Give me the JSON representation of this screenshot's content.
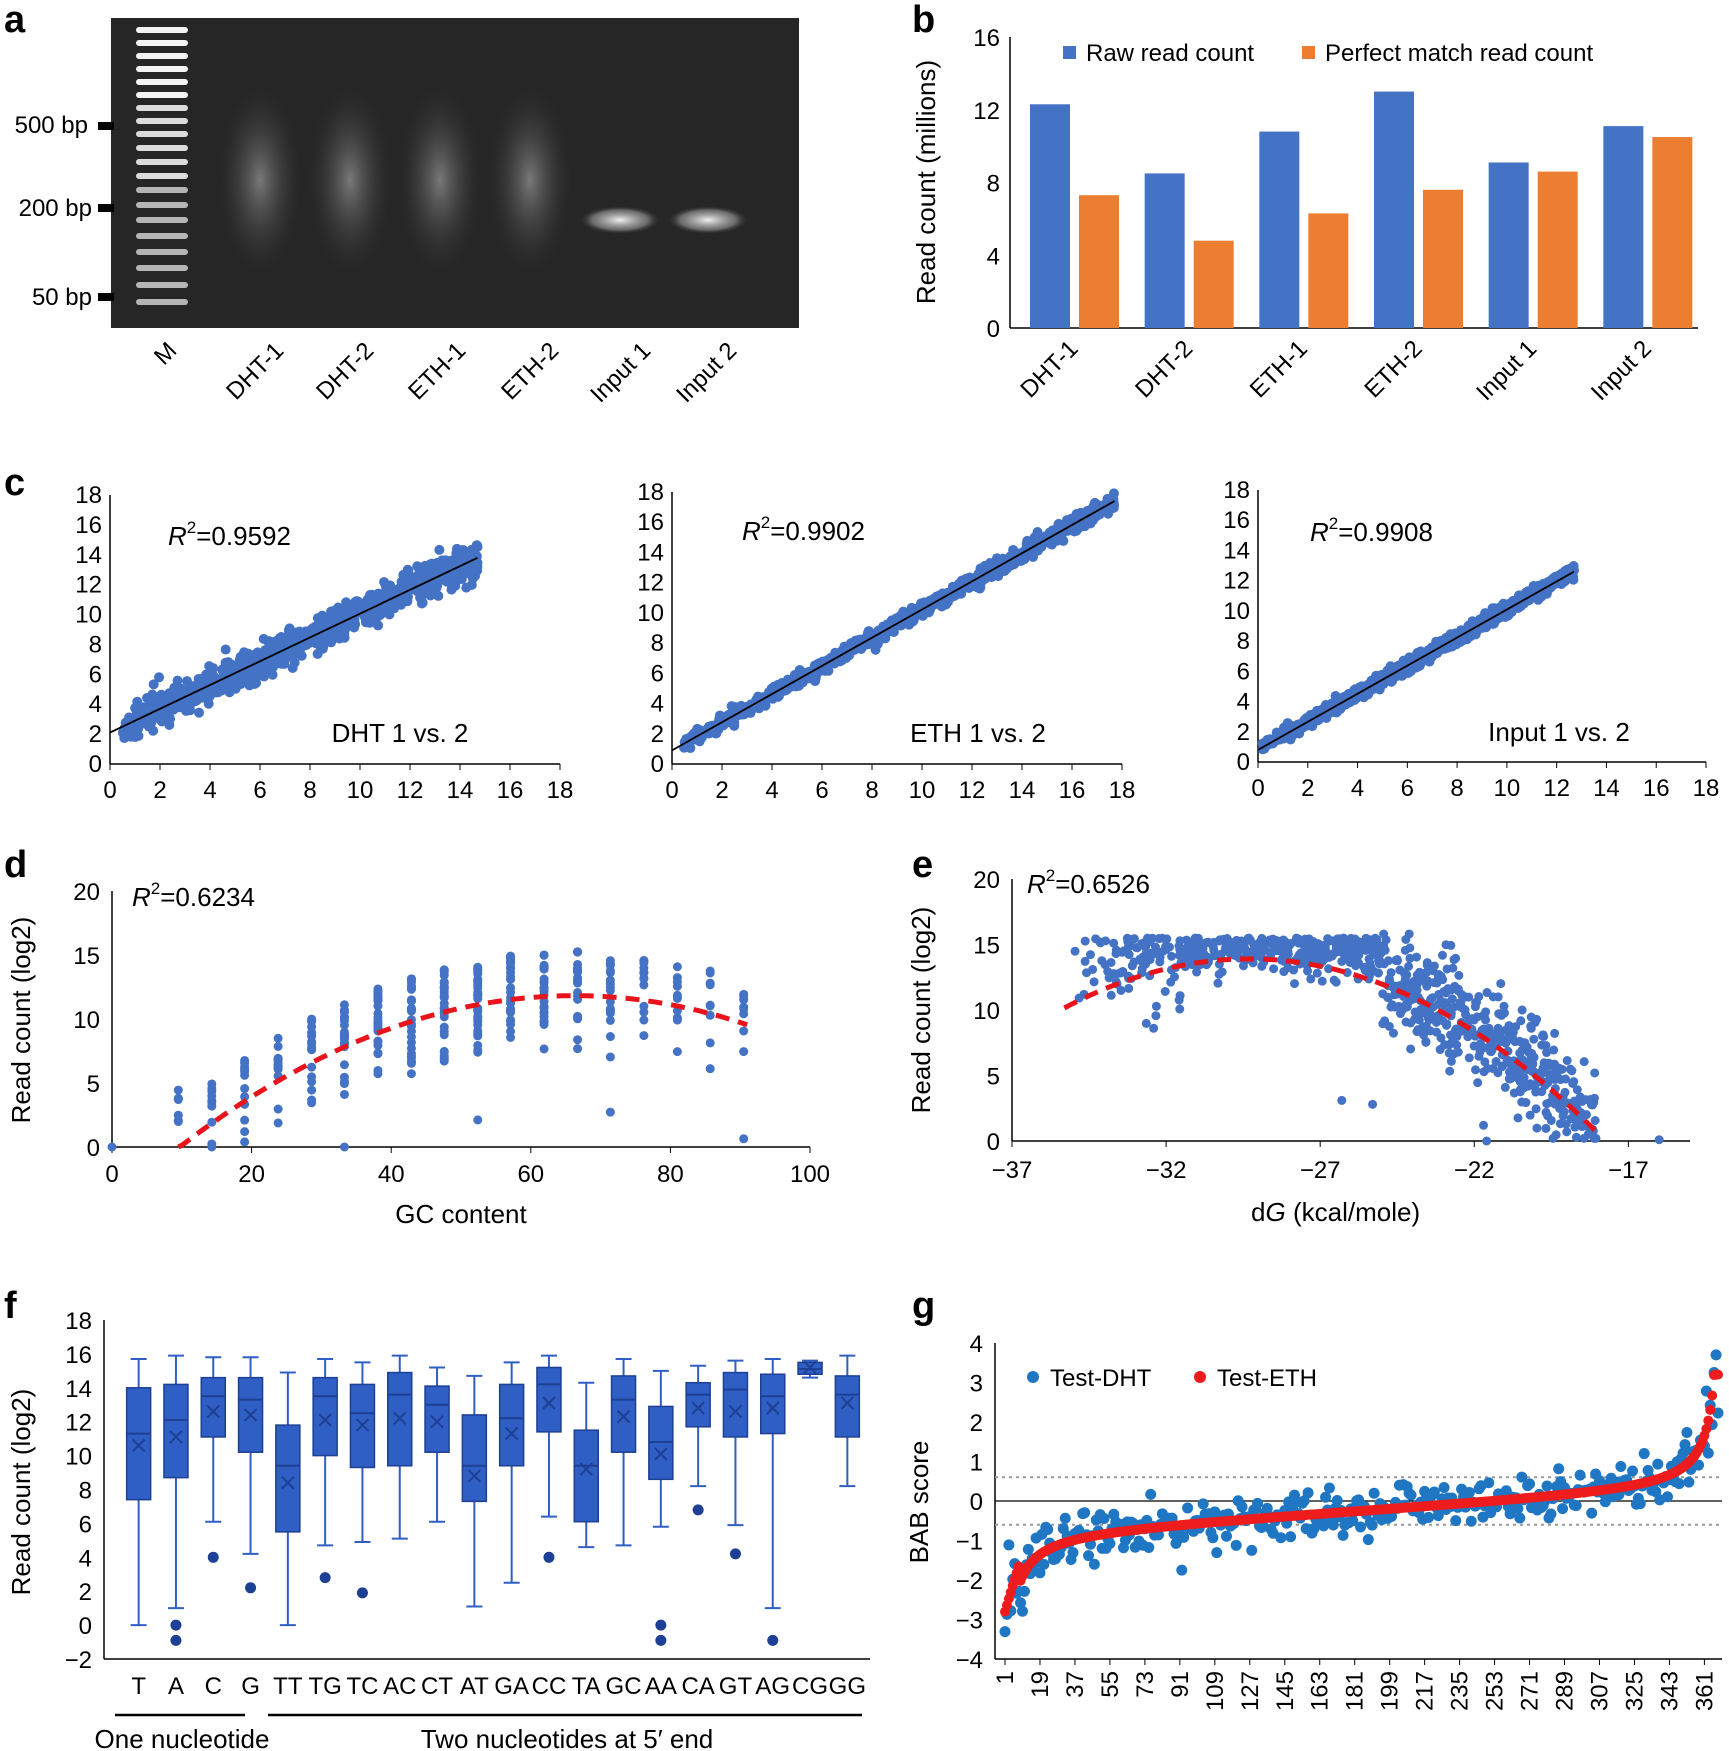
{
  "panels": {
    "a": {
      "label": "a"
    },
    "b": {
      "label": "b"
    },
    "c": {
      "label": "c"
    },
    "d": {
      "label": "d"
    },
    "e": {
      "label": "e"
    },
    "f": {
      "label": "f"
    },
    "g": {
      "label": "g"
    }
  },
  "chart_data": [
    {
      "id": "a",
      "type": "other",
      "description_kind": "gel",
      "marker_labels": [
        "500 bp",
        "200 bp",
        "50 bp"
      ],
      "lane_labels": [
        "M",
        "DHT-1",
        "DHT-2",
        "ETH-1",
        "ETH-2",
        "Input 1",
        "Input 2"
      ]
    },
    {
      "id": "b",
      "type": "bar",
      "categories": [
        "DHT-1",
        "DHT-2",
        "ETH-1",
        "ETH-2",
        "Input 1",
        "Input 2"
      ],
      "series": [
        {
          "name": "Raw read count",
          "color": "#4472c4",
          "values": [
            12.3,
            8.5,
            10.8,
            13.0,
            9.1,
            11.1
          ]
        },
        {
          "name": "Perfect match read count",
          "color": "#ed7d31",
          "values": [
            7.3,
            4.8,
            6.3,
            7.6,
            8.6,
            10.5
          ]
        }
      ],
      "ylabel": "Read count (millions)",
      "ylim": [
        0,
        16
      ],
      "yticks": [
        0,
        4,
        8,
        12,
        16
      ]
    },
    {
      "id": "c1",
      "type": "scatter",
      "annotation": "DHT 1 vs. 2",
      "r2_label": "R",
      "r2_sup": "2",
      "r2_value": "=0.9592",
      "xlim": [
        0,
        18
      ],
      "ylim": [
        0,
        18
      ],
      "ticks": [
        0,
        2,
        4,
        6,
        8,
        10,
        12,
        14,
        16,
        18
      ],
      "fit": {
        "x0": 0,
        "y0": 2.1,
        "x1": 14.7,
        "y1": 13.8
      },
      "x_range": [
        0.5,
        14.7
      ],
      "slope": 0.8,
      "intercept": 2.1,
      "spread": 0.6
    },
    {
      "id": "c2",
      "type": "scatter",
      "annotation": "ETH 1 vs. 2",
      "r2_label": "R",
      "r2_sup": "2",
      "r2_value": "=0.9902",
      "xlim": [
        0,
        18
      ],
      "ylim": [
        0,
        18
      ],
      "ticks": [
        0,
        2,
        4,
        6,
        8,
        10,
        12,
        14,
        16,
        18
      ],
      "fit": {
        "x0": 0,
        "y0": 0.9,
        "x1": 17.7,
        "y1": 17.4
      },
      "x_range": [
        0.4,
        17.7
      ],
      "slope": 0.93,
      "intercept": 0.9,
      "spread": 0.25
    },
    {
      "id": "c3",
      "type": "scatter",
      "annotation": "Input 1 vs. 2",
      "r2_label": "R",
      "r2_sup": "2",
      "r2_value": "=0.9908",
      "xlim": [
        0,
        18
      ],
      "ylim": [
        0,
        18
      ],
      "ticks": [
        0,
        2,
        4,
        6,
        8,
        10,
        12,
        14,
        16,
        18
      ],
      "fit": {
        "x0": 0,
        "y0": 0.8,
        "x1": 12.7,
        "y1": 12.6
      },
      "x_range": [
        0.1,
        12.7
      ],
      "slope": 0.93,
      "intercept": 0.8,
      "spread": 0.22
    },
    {
      "id": "d",
      "type": "scatter",
      "xlabel": "GC content",
      "ylabel": "Read count (log2)",
      "r2_label": "R",
      "r2_sup": "2",
      "r2_value": "=0.6234",
      "xlim": [
        0,
        100
      ],
      "ylim": [
        0,
        20
      ],
      "xticks": [
        0,
        20,
        40,
        60,
        80,
        100
      ],
      "yticks": [
        0,
        5,
        10,
        15,
        20
      ],
      "gc_levels": [
        9.5,
        14.3,
        19,
        23.8,
        28.6,
        33.3,
        38.1,
        42.9,
        47.6,
        52.4,
        57.1,
        61.9,
        66.7,
        71.4,
        76.2,
        81,
        85.7,
        90.5
      ],
      "fit_quadratic": {
        "a": -0.0037,
        "b": 0.49,
        "c": -4.4,
        "x_from": 9.5,
        "x_to": 91
      }
    },
    {
      "id": "e",
      "type": "scatter",
      "xlabel_prefix": "d",
      "xlabel_italic": "G",
      "xlabel_suffix": " (kcal/mole)",
      "ylabel": "Read count (log2)",
      "r2_label": "R",
      "r2_sup": "2",
      "r2_value": "=0.6526",
      "xlim": [
        -37,
        -15
      ],
      "ylim": [
        0,
        20
      ],
      "xticks": [
        -37,
        -32,
        -27,
        -22,
        -17
      ],
      "xtick_labels": [
        "−37",
        "−32",
        "−27",
        "−22",
        "−17"
      ],
      "yticks": [
        0,
        5,
        10,
        15,
        20
      ],
      "fit_quadratic": {
        "vertex_x": -29.3,
        "vertex_y": 13.9,
        "k": -0.104,
        "x_from": -35.3,
        "x_to": -17.8
      }
    },
    {
      "id": "f",
      "type": "box",
      "ylabel": "Read count (log2)",
      "ylim": [
        -2,
        18
      ],
      "yticks": [
        -2,
        0,
        2,
        4,
        6,
        8,
        10,
        12,
        14,
        16,
        18
      ],
      "categories": [
        "T",
        "A",
        "C",
        "G",
        "TT",
        "TG",
        "TC",
        "AC",
        "CT",
        "AT",
        "GA",
        "CC",
        "TA",
        "GC",
        "AA",
        "CA",
        "GT",
        "AG",
        "CG",
        "GG"
      ],
      "boxes": [
        {
          "min": 0,
          "q1": 7.4,
          "med": 11.3,
          "q3": 14.0,
          "max": 15.7,
          "mean": 10.6,
          "outliers": []
        },
        {
          "min": 1.0,
          "q1": 8.7,
          "med": 12.1,
          "q3": 14.2,
          "max": 15.9,
          "mean": 11.1,
          "outliers": [
            0,
            -0.9
          ]
        },
        {
          "min": 6.1,
          "q1": 11.1,
          "med": 13.5,
          "q3": 14.6,
          "max": 15.8,
          "mean": 12.6,
          "outliers": [
            4.0
          ]
        },
        {
          "min": 4.2,
          "q1": 10.2,
          "med": 13.3,
          "q3": 14.6,
          "max": 15.8,
          "mean": 12.4,
          "outliers": [
            2.2
          ]
        },
        {
          "min": 0,
          "q1": 5.5,
          "med": 9.4,
          "q3": 11.8,
          "max": 14.9,
          "mean": 8.4,
          "outliers": []
        },
        {
          "min": 4.7,
          "q1": 10.0,
          "med": 13.5,
          "q3": 14.6,
          "max": 15.7,
          "mean": 12.1,
          "outliers": [
            2.8
          ]
        },
        {
          "min": 4.9,
          "q1": 9.3,
          "med": 12.5,
          "q3": 14.2,
          "max": 15.5,
          "mean": 11.8,
          "outliers": [
            1.9
          ]
        },
        {
          "min": 5.1,
          "q1": 9.4,
          "med": 13.6,
          "q3": 14.9,
          "max": 15.9,
          "mean": 12.2,
          "outliers": []
        },
        {
          "min": 6.1,
          "q1": 10.2,
          "med": 13.0,
          "q3": 14.1,
          "max": 15.2,
          "mean": 12.0,
          "outliers": []
        },
        {
          "min": 1.1,
          "q1": 7.3,
          "med": 9.4,
          "q3": 12.4,
          "max": 14.7,
          "mean": 8.8,
          "outliers": []
        },
        {
          "min": 2.5,
          "q1": 9.4,
          "med": 12.2,
          "q3": 14.2,
          "max": 15.5,
          "mean": 11.3,
          "outliers": []
        },
        {
          "min": 6.4,
          "q1": 11.4,
          "med": 14.2,
          "q3": 15.2,
          "max": 15.9,
          "mean": 13.1,
          "outliers": [
            4.0
          ]
        },
        {
          "min": 4.6,
          "q1": 6.1,
          "med": 9.4,
          "q3": 11.5,
          "max": 14.3,
          "mean": 9.2,
          "outliers": []
        },
        {
          "min": 4.7,
          "q1": 10.2,
          "med": 13.3,
          "q3": 14.7,
          "max": 15.7,
          "mean": 12.3,
          "outliers": []
        },
        {
          "min": 5.8,
          "q1": 8.6,
          "med": 10.8,
          "q3": 12.9,
          "max": 15.0,
          "mean": 10.1,
          "outliers": [
            0,
            -0.9
          ]
        },
        {
          "min": 8.2,
          "q1": 11.7,
          "med": 13.6,
          "q3": 14.3,
          "max": 15.3,
          "mean": 12.8,
          "outliers": [
            6.8
          ]
        },
        {
          "min": 5.9,
          "q1": 11.1,
          "med": 13.9,
          "q3": 14.9,
          "max": 15.6,
          "mean": 12.6,
          "outliers": [
            4.2
          ]
        },
        {
          "min": 1.0,
          "q1": 11.3,
          "med": 13.5,
          "q3": 14.8,
          "max": 15.7,
          "mean": 12.8,
          "outliers": [
            -0.9
          ]
        },
        {
          "min": 14.6,
          "q1": 14.8,
          "med": 15.1,
          "q3": 15.5,
          "max": 15.6,
          "mean": 15.2,
          "outliers": []
        },
        {
          "min": 8.2,
          "q1": 11.1,
          "med": 13.6,
          "q3": 14.7,
          "max": 15.9,
          "mean": 13.1,
          "outliers": []
        }
      ],
      "group_labels": [
        "One nucleotide",
        "Two nucleotides at 5′ end"
      ]
    },
    {
      "id": "g",
      "type": "scatter",
      "ylabel": "BAB score",
      "ylim": [
        -4,
        4
      ],
      "yticks": [
        -4,
        -3,
        -2,
        -1,
        0,
        1,
        2,
        3,
        4
      ],
      "xlim": [
        1,
        368
      ],
      "xticks": [
        1,
        19,
        37,
        55,
        73,
        91,
        109,
        127,
        145,
        163,
        181,
        199,
        217,
        235,
        253,
        271,
        289,
        307,
        325,
        343,
        361
      ],
      "thresholds": [
        0.6,
        -0.6
      ],
      "n_points": 368,
      "series": [
        {
          "name": "Test-DHT",
          "color": "#1f77c4"
        },
        {
          "name": "Test-ETH",
          "color": "#ee1c1c"
        }
      ]
    }
  ]
}
